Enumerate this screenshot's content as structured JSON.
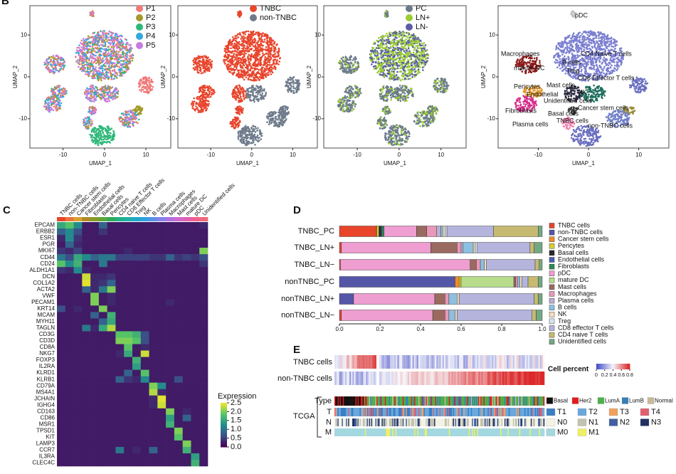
{
  "panels": [
    "B",
    "C",
    "D",
    "E"
  ],
  "umap": {
    "xlabel": "UMAP_1",
    "ylabel": "UMAP_2",
    "xlim": [
      -18,
      16
    ],
    "ylim": [
      -17,
      17
    ],
    "xticks": [
      -10,
      0,
      10
    ],
    "yticks": [
      -10,
      0,
      10
    ],
    "plots": [
      {
        "legend": [
          {
            "name": "P1",
            "color": "#f07a7a"
          },
          {
            "name": "P2",
            "color": "#a39a2a"
          },
          {
            "name": "P3",
            "color": "#2eb87a"
          },
          {
            "name": "P4",
            "color": "#30a8e0"
          },
          {
            "name": "P5",
            "color": "#c77cde"
          }
        ]
      },
      {
        "legend": [
          {
            "name": "TNBC",
            "color": "#e8452c"
          },
          {
            "name": "non-TNBC",
            "color": "#6e7b8b"
          }
        ]
      },
      {
        "legend": [
          {
            "name": "PC",
            "color": "#6b7b8c"
          },
          {
            "name": "LN+",
            "color": "#9acd32"
          },
          {
            "name": "LN-",
            "color": "#5b5ea6"
          }
        ]
      },
      {
        "annotations": [
          "pDC",
          "Macrophages",
          "mature DC",
          "B cells",
          "CD4 Naive T cells",
          "Treg",
          "CD8 Effector T cells",
          "Mast cells",
          "Pericytes",
          "Endothelial",
          "NK",
          "Unidentified cells",
          "Fibroblasts",
          "Cancer stem cells",
          "Basal cells",
          "TNBC cells",
          "Plasma cells",
          "non-TNBC cells"
        ]
      }
    ]
  },
  "heatmap": {
    "clusters": [
      "TNBC cells",
      "non-TNBC cells",
      "Cancer stem cells",
      "Fibroblasts",
      "Endothelial cells",
      "Basal cells",
      "Pericytes",
      "CD4 naive T cells",
      "CD8 Effector T cells",
      "Treg",
      "NK",
      "B cells",
      "Plasma cells",
      "Macrophages",
      "Mast cells",
      "mature DC",
      "pDC",
      "Unidentified cells"
    ],
    "cluster_colors": [
      "#e8452c",
      "#e8743b",
      "#d9a030",
      "#b08a2a",
      "#8a9a2a",
      "#5aa63a",
      "#2eaa5a",
      "#20b08a",
      "#20b0a8",
      "#20a8c8",
      "#30a0e0",
      "#5a90e8",
      "#8a80e8",
      "#b070e0",
      "#d068d0",
      "#e060b0",
      "#f06090",
      "#f06a7a"
    ],
    "genes": [
      "EPCAM",
      "ERBB2",
      "ESR1",
      "PGR",
      "MKI67",
      "CD44",
      "CD24",
      "ALDH1A1",
      "DCN",
      "COL1A2",
      "ACTA2",
      "VWF",
      "PECAM1",
      "KRT14",
      "MCAM",
      "MYH11",
      "TAGLN",
      "CD3G",
      "CD3D",
      "CD8A",
      "NKG7",
      "FOXP3",
      "IL2RA",
      "KLRD1",
      "KLRB1",
      "CD79A",
      "MS4A1",
      "JCHAIN",
      "IGHG4",
      "CD163",
      "CD86",
      "MSR1",
      "TPSD1",
      "KIT",
      "LAMP3",
      "CCR7",
      "IL3RA",
      "CLEC4C"
    ],
    "values": [
      [
        1.5,
        1.8,
        1.2,
        0.2,
        0.2,
        0.8,
        0.2,
        0.2,
        0.2,
        0.2,
        0.2,
        0.2,
        0.2,
        0.2,
        0.2,
        0.2,
        0.2,
        0.3
      ],
      [
        0.8,
        1.2,
        0.6,
        0.2,
        0.2,
        0.4,
        0.2,
        0.2,
        0.2,
        0.2,
        0.2,
        0.2,
        0.2,
        0.2,
        0.2,
        0.2,
        0.2,
        0.2
      ],
      [
        0.3,
        1.2,
        0.4,
        0.2,
        0.2,
        0.2,
        0.2,
        0.2,
        0.2,
        0.2,
        0.2,
        0.2,
        0.2,
        0.2,
        0.2,
        0.2,
        0.2,
        0.2
      ],
      [
        0.2,
        0.8,
        0.3,
        0.2,
        0.2,
        0.2,
        0.2,
        0.2,
        0.2,
        0.2,
        0.2,
        0.2,
        0.2,
        0.2,
        0.2,
        0.2,
        0.2,
        0.2
      ],
      [
        0.4,
        0.3,
        0.5,
        0.2,
        0.2,
        0.2,
        0.2,
        0.2,
        0.3,
        0.2,
        0.2,
        0.2,
        0.2,
        0.2,
        0.2,
        0.2,
        0.2,
        2.0
      ],
      [
        1.0,
        0.6,
        1.5,
        1.2,
        0.8,
        1.0,
        1.0,
        0.5,
        0.5,
        0.5,
        0.5,
        0.4,
        0.4,
        0.8,
        0.4,
        0.5,
        0.4,
        0.6
      ],
      [
        1.8,
        1.2,
        1.6,
        0.2,
        0.2,
        1.0,
        0.2,
        0.2,
        0.2,
        0.2,
        0.2,
        0.2,
        0.2,
        0.2,
        0.2,
        0.2,
        0.2,
        0.4
      ],
      [
        0.4,
        0.3,
        1.2,
        0.3,
        0.2,
        0.2,
        0.2,
        0.2,
        0.2,
        0.2,
        0.2,
        0.2,
        0.2,
        0.2,
        0.2,
        0.2,
        0.2,
        0.2
      ],
      [
        0.2,
        0.2,
        0.2,
        2.3,
        0.3,
        0.3,
        0.4,
        0.2,
        0.2,
        0.2,
        0.2,
        0.2,
        0.2,
        0.2,
        0.2,
        0.2,
        0.2,
        0.2
      ],
      [
        0.2,
        0.2,
        0.2,
        2.4,
        0.3,
        0.4,
        0.8,
        0.2,
        0.2,
        0.2,
        0.2,
        0.2,
        0.2,
        0.2,
        0.2,
        0.2,
        0.2,
        0.2
      ],
      [
        0.2,
        0.2,
        0.2,
        0.8,
        0.3,
        1.0,
        2.0,
        0.2,
        0.2,
        0.2,
        0.2,
        0.2,
        0.2,
        0.2,
        0.2,
        0.2,
        0.2,
        0.2
      ],
      [
        0.2,
        0.2,
        0.2,
        0.2,
        2.0,
        0.2,
        0.3,
        0.2,
        0.2,
        0.2,
        0.2,
        0.2,
        0.2,
        0.2,
        0.2,
        0.2,
        0.2,
        0.2
      ],
      [
        0.2,
        0.2,
        0.2,
        0.2,
        2.0,
        0.2,
        0.3,
        0.2,
        0.2,
        0.2,
        0.2,
        0.2,
        0.2,
        0.3,
        0.2,
        0.2,
        0.2,
        0.2
      ],
      [
        0.6,
        0.2,
        0.3,
        0.2,
        0.2,
        2.0,
        0.2,
        0.2,
        0.2,
        0.2,
        0.2,
        0.2,
        0.2,
        0.2,
        0.2,
        0.2,
        0.2,
        0.2
      ],
      [
        0.2,
        0.2,
        0.2,
        0.2,
        0.8,
        0.2,
        1.6,
        0.2,
        0.2,
        0.2,
        0.2,
        0.2,
        0.2,
        0.2,
        0.2,
        0.2,
        0.2,
        0.2
      ],
      [
        0.2,
        0.2,
        0.2,
        0.2,
        0.2,
        0.8,
        1.5,
        0.2,
        0.2,
        0.2,
        0.2,
        0.2,
        0.2,
        0.2,
        0.2,
        0.2,
        0.2,
        0.2
      ],
      [
        0.2,
        0.2,
        0.2,
        1.0,
        0.3,
        1.5,
        2.2,
        0.2,
        0.2,
        0.2,
        0.2,
        0.2,
        0.2,
        0.2,
        0.2,
        0.2,
        0.2,
        0.2
      ],
      [
        0.2,
        0.2,
        0.2,
        0.2,
        0.2,
        0.2,
        0.2,
        1.8,
        1.8,
        1.6,
        0.6,
        0.2,
        0.2,
        0.2,
        0.2,
        0.2,
        0.2,
        0.2
      ],
      [
        0.2,
        0.2,
        0.2,
        0.2,
        0.2,
        0.2,
        0.2,
        2.0,
        2.0,
        1.8,
        0.6,
        0.2,
        0.2,
        0.2,
        0.2,
        0.2,
        0.2,
        0.2
      ],
      [
        0.2,
        0.2,
        0.2,
        0.2,
        0.2,
        0.2,
        0.2,
        0.2,
        1.8,
        0.2,
        0.3,
        0.2,
        0.2,
        0.2,
        0.2,
        0.2,
        0.2,
        0.2
      ],
      [
        0.2,
        0.2,
        0.2,
        0.2,
        0.2,
        0.2,
        0.2,
        0.3,
        1.5,
        0.2,
        2.3,
        0.2,
        0.2,
        0.2,
        0.2,
        0.2,
        0.2,
        0.2
      ],
      [
        0.2,
        0.2,
        0.2,
        0.2,
        0.2,
        0.2,
        0.2,
        0.2,
        0.2,
        1.6,
        0.2,
        0.2,
        0.2,
        0.2,
        0.2,
        0.2,
        0.2,
        0.2
      ],
      [
        0.2,
        0.2,
        0.2,
        0.2,
        0.2,
        0.2,
        0.2,
        0.2,
        0.2,
        1.4,
        0.2,
        0.2,
        0.2,
        0.2,
        0.2,
        0.2,
        0.2,
        0.2
      ],
      [
        0.2,
        0.2,
        0.2,
        0.2,
        0.2,
        0.2,
        0.2,
        0.2,
        0.8,
        0.2,
        1.8,
        0.2,
        0.2,
        0.2,
        0.2,
        0.2,
        0.2,
        0.2
      ],
      [
        0.2,
        0.2,
        0.2,
        0.2,
        0.2,
        0.2,
        0.2,
        0.8,
        0.4,
        0.3,
        1.2,
        0.2,
        0.2,
        0.2,
        0.6,
        0.2,
        0.2,
        0.2
      ],
      [
        0.2,
        0.2,
        0.2,
        0.2,
        0.2,
        0.2,
        0.2,
        0.2,
        0.2,
        0.2,
        0.2,
        2.0,
        1.2,
        0.2,
        0.2,
        0.2,
        0.2,
        0.2
      ],
      [
        0.2,
        0.2,
        0.2,
        0.2,
        0.2,
        0.2,
        0.2,
        0.2,
        0.2,
        0.2,
        0.2,
        2.2,
        0.3,
        0.2,
        0.2,
        0.2,
        0.2,
        0.2
      ],
      [
        0.2,
        0.2,
        0.2,
        0.2,
        0.2,
        0.2,
        0.2,
        0.2,
        0.2,
        0.2,
        0.2,
        0.3,
        2.4,
        0.2,
        0.2,
        0.2,
        0.2,
        0.2
      ],
      [
        0.2,
        0.2,
        0.2,
        0.2,
        0.2,
        0.2,
        0.2,
        0.2,
        0.2,
        0.2,
        0.2,
        0.3,
        2.3,
        0.2,
        0.2,
        0.2,
        0.2,
        0.2
      ],
      [
        0.2,
        0.2,
        0.2,
        0.2,
        0.2,
        0.2,
        0.2,
        0.2,
        0.2,
        0.2,
        0.2,
        0.2,
        0.2,
        2.0,
        0.2,
        0.3,
        0.2,
        0.2
      ],
      [
        0.2,
        0.2,
        0.2,
        0.2,
        0.2,
        0.2,
        0.2,
        0.2,
        0.2,
        0.2,
        0.2,
        0.2,
        0.2,
        1.4,
        0.2,
        0.8,
        0.2,
        0.2
      ],
      [
        0.2,
        0.2,
        0.2,
        0.2,
        0.2,
        0.2,
        0.2,
        0.2,
        0.2,
        0.2,
        0.2,
        0.2,
        0.2,
        1.6,
        0.2,
        0.2,
        0.2,
        0.2
      ],
      [
        0.2,
        0.2,
        0.2,
        0.2,
        0.2,
        0.2,
        0.2,
        0.2,
        0.2,
        0.2,
        0.2,
        0.2,
        0.2,
        0.2,
        2.0,
        0.2,
        0.2,
        0.2
      ],
      [
        0.2,
        0.2,
        0.2,
        0.2,
        0.2,
        0.2,
        0.2,
        0.2,
        0.2,
        0.2,
        0.2,
        0.2,
        0.2,
        0.2,
        1.8,
        0.2,
        0.2,
        0.2
      ],
      [
        0.2,
        0.2,
        0.2,
        0.2,
        0.2,
        0.2,
        0.2,
        0.2,
        0.2,
        0.2,
        0.2,
        0.2,
        0.2,
        0.2,
        0.2,
        2.0,
        0.2,
        0.2
      ],
      [
        0.2,
        0.2,
        0.2,
        0.2,
        0.2,
        0.2,
        0.2,
        1.0,
        0.2,
        0.3,
        0.2,
        0.8,
        0.2,
        0.2,
        0.2,
        1.6,
        0.2,
        0.2
      ],
      [
        0.2,
        0.2,
        0.2,
        0.2,
        0.2,
        0.2,
        0.2,
        0.2,
        0.2,
        0.2,
        0.2,
        0.2,
        0.2,
        0.2,
        0.2,
        0.2,
        1.4,
        0.2
      ],
      [
        0.2,
        0.2,
        0.2,
        0.2,
        0.2,
        0.2,
        0.2,
        0.2,
        0.2,
        0.2,
        0.2,
        0.2,
        0.2,
        0.2,
        0.2,
        0.2,
        1.6,
        0.2
      ]
    ],
    "colorbar": {
      "title": "Expression",
      "clim": [
        0,
        2.5
      ],
      "ticks": [
        {
          "value": 0,
          "label": "0.0"
        },
        0.5,
        {
          "value": 1,
          "label": "1.0"
        },
        1.5,
        {
          "value": 2,
          "label": "2.0"
        },
        2.5
      ],
      "colors": [
        "#440154",
        "#3b528b",
        "#21908d",
        "#5dc963",
        "#fde725"
      ]
    }
  },
  "chart_data": {
    "type": "stacked_barh",
    "categories": [
      "TNBC_PC",
      "TNBC_LN+",
      "TNBC_LN−",
      "nonTNBC_PC",
      "nonTNBC_LN+",
      "nonTNBC_LN−"
    ],
    "xlim": [
      0,
      1
    ],
    "xticks": [
      {
        "value": 0,
        "label": "0.0"
      },
      0.2,
      0.4,
      0.6,
      0.8,
      {
        "value": 1,
        "label": "1.0"
      }
    ],
    "series": [
      {
        "name": "TNBC cells",
        "color": "#e8452c",
        "values": [
          0.18,
          0.01,
          0.005,
          0,
          0,
          0.01
        ]
      },
      {
        "name": "non-TNBC cells",
        "color": "#5457a8",
        "values": [
          0,
          0,
          0,
          0.57,
          0.07,
          0
        ]
      },
      {
        "name": "Cancer stem cells",
        "color": "#f08c2e",
        "values": [
          0.005,
          0,
          0,
          0.02,
          0,
          0
        ]
      },
      {
        "name": "Pericytes",
        "color": "#d8cc3a",
        "values": [
          0.01,
          0,
          0,
          0.01,
          0,
          0
        ]
      },
      {
        "name": "Basal cells",
        "color": "#2a2a2a",
        "values": [
          0.01,
          0,
          0,
          0,
          0,
          0
        ]
      },
      {
        "name": "Endothelial cells",
        "color": "#4b5fb0",
        "values": [
          0.005,
          0,
          0,
          0,
          0,
          0
        ]
      },
      {
        "name": "Fibroblasts",
        "color": "#2f8a56",
        "values": [
          0.01,
          0,
          0,
          0,
          0,
          0
        ]
      },
      {
        "name": "pDC",
        "color": "#ee9ed0",
        "values": [
          0.16,
          0.44,
          0.64,
          0,
          0.4,
          0.45
        ]
      },
      {
        "name": "mature DC",
        "color": "#b8dc8c",
        "values": [
          0,
          0,
          0,
          0.26,
          0,
          0
        ]
      },
      {
        "name": "Mast cells",
        "color": "#9a6a60",
        "values": [
          0.05,
          0.13,
          0.03,
          0.01,
          0.05,
          0.06
        ]
      },
      {
        "name": "Macrophages",
        "color": "#e898b8",
        "values": [
          0.05,
          0.02,
          0.02,
          0.01,
          0.02,
          0.02
        ]
      },
      {
        "name": "Plasma cells",
        "color": "#b8b0d0",
        "values": [
          0.02,
          0.01,
          0,
          0,
          0,
          0
        ]
      },
      {
        "name": "B cells",
        "color": "#8cc0e0",
        "values": [
          0.01,
          0.05,
          0.02,
          0.01,
          0.04,
          0.03
        ]
      },
      {
        "name": "NK",
        "color": "#f5dcc0",
        "values": [
          0.01,
          0.01,
          0.01,
          0.01,
          0.01,
          0.01
        ]
      },
      {
        "name": "Treg",
        "color": "#d6e4f0",
        "values": [
          0.01,
          0.01,
          0,
          0,
          0,
          0
        ]
      },
      {
        "name": "CD8 effector T cells",
        "color": "#b4b4dc",
        "values": [
          0.23,
          0.26,
          0.24,
          0.03,
          0.37,
          0.37
        ]
      },
      {
        "name": "CD4 naive T cells",
        "color": "#c6ba72",
        "values": [
          0.22,
          0.02,
          0.02,
          0.05,
          0.02,
          0.02
        ]
      },
      {
        "name": "Unidentified cells",
        "color": "#74a884",
        "values": [
          0.02,
          0.04,
          0.015,
          0.02,
          0.02,
          0.03
        ]
      }
    ]
  },
  "panel_e": {
    "rows": [
      "TNBC cells",
      "non-TNBC cells"
    ],
    "cbar_title": "Cell percent",
    "cbar_ticks": [
      0,
      0.2,
      0.4,
      0.6,
      0.8
    ],
    "tcga": "TCGA",
    "tracks": [
      "Type",
      "T",
      "N",
      "M"
    ],
    "legends": [
      [
        {
          "name": "Basal",
          "color": "#111111"
        },
        {
          "name": "Her2",
          "color": "#e41a1c"
        },
        {
          "name": "LumA",
          "color": "#4daf4a"
        },
        {
          "name": "LumB",
          "color": "#377eb8"
        },
        {
          "name": "Normal",
          "color": "#c8b89a"
        }
      ],
      [
        {
          "name": "T1",
          "color": "#3a7fc4"
        },
        {
          "name": "T2",
          "color": "#6aa8dc"
        },
        {
          "name": "T3",
          "color": "#f0a060"
        },
        {
          "name": "T4",
          "color": "#e06070"
        }
      ],
      [
        {
          "name": "N0",
          "color": "#f4f2e4"
        },
        {
          "name": "N1",
          "color": "#c4c2b0"
        },
        {
          "name": "N2",
          "color": "#4060a0"
        },
        {
          "name": "N3",
          "color": "#203060"
        }
      ],
      [
        {
          "name": "M0",
          "color": "#a4d8e0"
        },
        {
          "name": "M1",
          "color": "#f0f060"
        }
      ]
    ]
  }
}
